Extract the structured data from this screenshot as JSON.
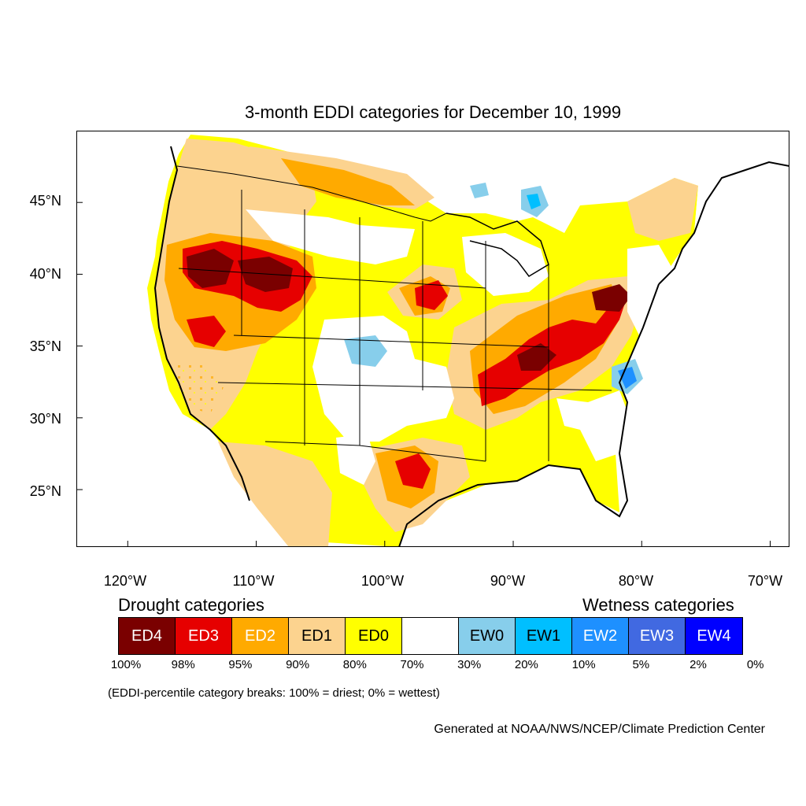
{
  "title": "3-month EDDI categories for December 10, 1999",
  "map": {
    "type": "choropleth-raster",
    "region": "Contiguous United States",
    "projection": "lat-lon",
    "lat_ticks": [
      "45°N",
      "40°N",
      "35°N",
      "30°N",
      "25°N"
    ],
    "lat_values": [
      45,
      40,
      35,
      30,
      25
    ],
    "lon_ticks": [
      "120°W",
      "110°W",
      "100°W",
      "90°W",
      "80°W",
      "70°W"
    ],
    "lon_values": [
      -120,
      -110,
      -100,
      -90,
      -80,
      -70
    ],
    "lat_range": [
      21,
      50
    ],
    "lon_range": [
      -124,
      -68.5
    ]
  },
  "legend": {
    "drought_heading": "Drought categories",
    "wetness_heading": "Wetness categories",
    "categories": [
      {
        "label": "ED4",
        "color": "#7a0000",
        "text_color": "#ffffff"
      },
      {
        "label": "ED3",
        "color": "#e60000",
        "text_color": "#ffffff"
      },
      {
        "label": "ED2",
        "color": "#ffaa00",
        "text_color": "#ffffff"
      },
      {
        "label": "ED1",
        "color": "#fcd38f",
        "text_color": "#000000"
      },
      {
        "label": "ED0",
        "color": "#ffff00",
        "text_color": "#000000"
      },
      {
        "label": "",
        "color": "#ffffff",
        "text_color": "#000000"
      },
      {
        "label": "EW0",
        "color": "#87ceeb",
        "text_color": "#000000"
      },
      {
        "label": "EW1",
        "color": "#00bfff",
        "text_color": "#000000"
      },
      {
        "label": "EW2",
        "color": "#1e90ff",
        "text_color": "#ffffff"
      },
      {
        "label": "EW3",
        "color": "#4169e1",
        "text_color": "#ffffff"
      },
      {
        "label": "EW4",
        "color": "#0000ff",
        "text_color": "#ffffff"
      }
    ],
    "percent_breaks": [
      "100%",
      "98%",
      "95%",
      "90%",
      "80%",
      "70%",
      "30%",
      "20%",
      "10%",
      "5%",
      "2%",
      "0%"
    ],
    "note": "(EDDI-percentile category breaks: 100% = driest; 0% = wettest)"
  },
  "credit": "Generated at NOAA/NWS/NCEP/Climate Prediction Center"
}
